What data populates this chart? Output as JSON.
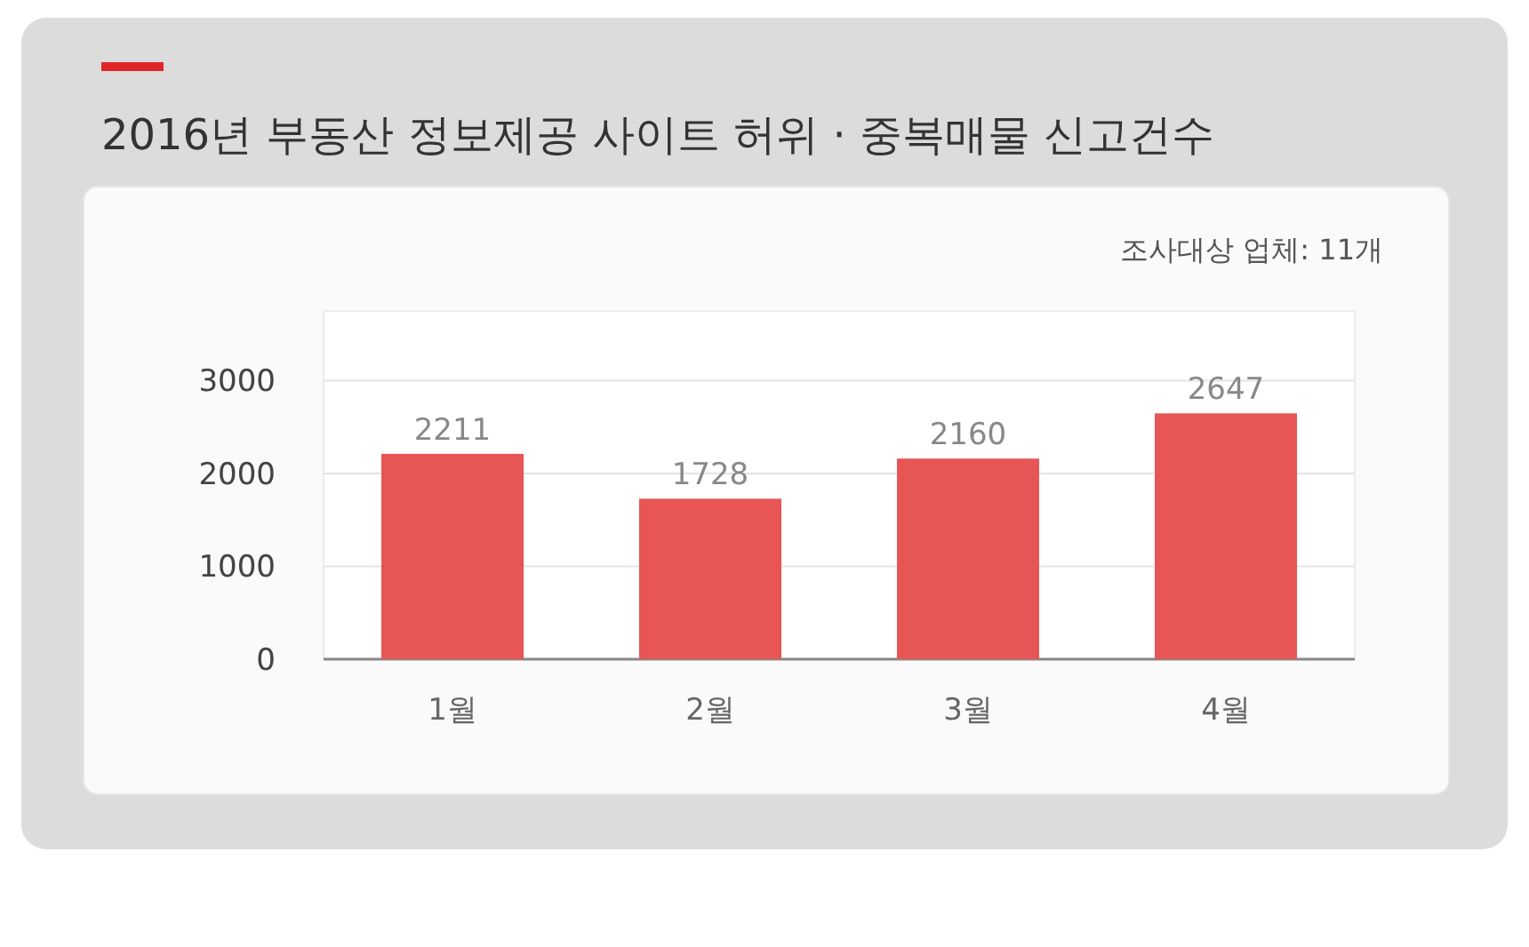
{
  "chart_data": {
    "type": "bar",
    "title": "2016년 부동산 정보제공 사이트 허위 · 중복매물 신고건수",
    "subtitle": "조사대상 업체: 11개",
    "categories": [
      "1월",
      "2월",
      "3월",
      "4월"
    ],
    "values": [
      2211,
      1728,
      2160,
      2647
    ],
    "color": "#e85555",
    "ylim": [
      0,
      3750
    ],
    "yticks": [
      0,
      1000,
      2000,
      3000
    ],
    "grid": "y",
    "data_labels": true
  }
}
